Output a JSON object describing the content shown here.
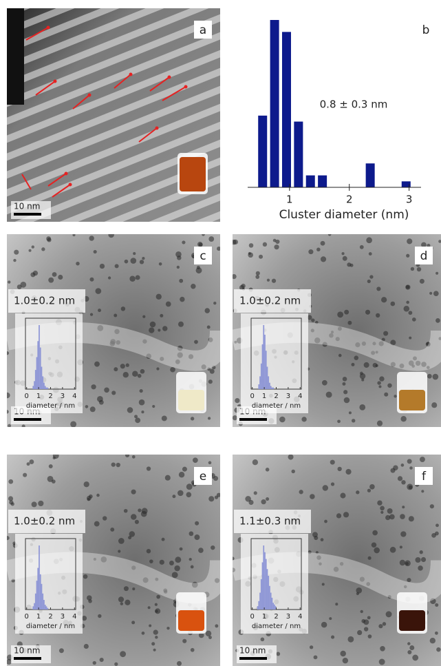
{
  "panels": [
    {
      "label": "a",
      "scale_bar": "10 nm"
    },
    {
      "label": "c",
      "scale_bar": "10 nm",
      "size": "1.0±0.2 nm",
      "inset": {
        "xlim": [
          -0.1,
          4.1
        ],
        "xticks": [
          0,
          1,
          2,
          3,
          4
        ],
        "xlabel": "diameter / nm",
        "bins": [
          0.5,
          0.6,
          0.7,
          0.8,
          0.9,
          1.0,
          1.1,
          1.2,
          1.3,
          1.4,
          1.5,
          1.6,
          1.7,
          1.8
        ],
        "counts": [
          2,
          5,
          12,
          20,
          30,
          40,
          26,
          14,
          8,
          4,
          2,
          1,
          1
        ],
        "color": "#8e96d6"
      }
    },
    {
      "label": "d",
      "scale_bar": "10 nm",
      "size": "1.0±0.2 nm",
      "inset": {
        "xlim": [
          -0.1,
          4.1
        ],
        "xticks": [
          0,
          1,
          2,
          3,
          4
        ],
        "xlabel": "diameter / nm",
        "bins": [
          0.5,
          0.6,
          0.7,
          0.8,
          0.9,
          1.0,
          1.1,
          1.2,
          1.3,
          1.4,
          1.5,
          1.6,
          1.7,
          1.8
        ],
        "counts": [
          3,
          8,
          16,
          28,
          40,
          34,
          24,
          14,
          8,
          4,
          2,
          1,
          1
        ],
        "color": "#8e96d6"
      }
    },
    {
      "label": "e",
      "scale_bar": "10 nm",
      "size": "1.0±0.2 nm",
      "inset": {
        "xlim": [
          -0.1,
          4.1
        ],
        "xticks": [
          0,
          1,
          2,
          3,
          4
        ],
        "xlabel": "diameter / nm",
        "bins": [
          0.5,
          0.6,
          0.7,
          0.8,
          0.9,
          1.0,
          1.1,
          1.2,
          1.3,
          1.4,
          1.5,
          1.6,
          1.7,
          1.8
        ],
        "counts": [
          2,
          4,
          10,
          18,
          26,
          40,
          22,
          16,
          10,
          6,
          3,
          2,
          1
        ],
        "color": "#8e96d6"
      }
    },
    {
      "label": "f",
      "scale_bar": "10 nm",
      "size": "1.1±0.3 nm",
      "inset": {
        "xlim": [
          -0.1,
          4.1
        ],
        "xticks": [
          0,
          1,
          2,
          3,
          4
        ],
        "xlabel": "diameter / nm",
        "bins": [
          0.4,
          0.5,
          0.6,
          0.7,
          0.8,
          0.9,
          1.0,
          1.1,
          1.2,
          1.3,
          1.4,
          1.5,
          1.6,
          1.7,
          1.8,
          1.9,
          2.0
        ],
        "counts": [
          2,
          5,
          10,
          18,
          28,
          38,
          34,
          30,
          24,
          20,
          14,
          10,
          7,
          4,
          3,
          2
        ],
        "color": "#8e96d6"
      }
    }
  ],
  "chart_data": {
    "type": "bar",
    "panel_label": "b",
    "annotation": "0.8 ± 0.3 nm",
    "xlabel": "Cluster diameter (nm)",
    "x": [
      0.55,
      0.75,
      0.95,
      1.15,
      1.35,
      1.55,
      2.35,
      2.95
    ],
    "values": [
      24,
      56,
      52,
      22,
      4,
      4,
      8,
      2
    ],
    "xlim": [
      0.3,
      3.2
    ],
    "xticks": [
      1,
      2,
      3
    ],
    "color": "#0d1a8c"
  }
}
